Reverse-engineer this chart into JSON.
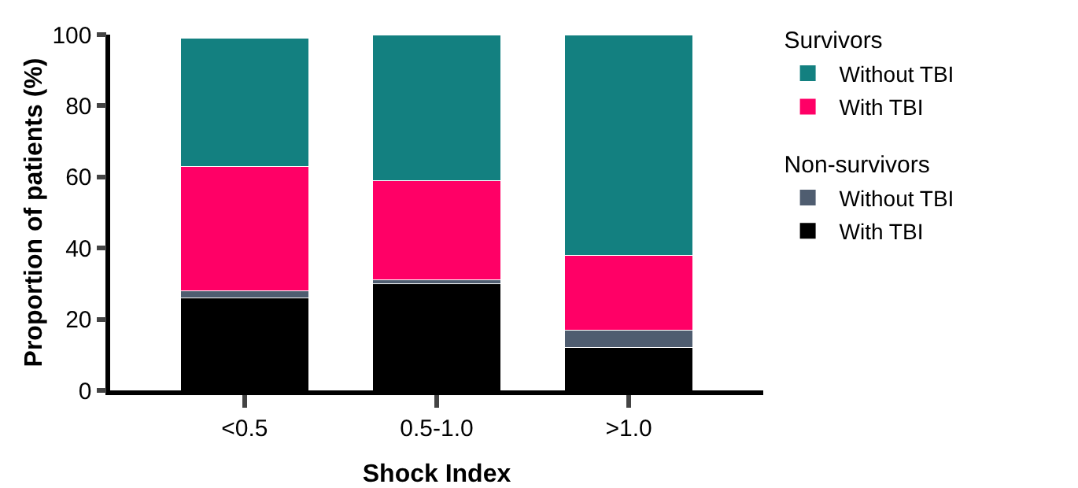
{
  "chart_data": {
    "type": "bar",
    "stacked": true,
    "xlabel": "Shock Index",
    "ylabel": "Proportion of patients (%)",
    "categories": [
      "<0.5",
      "0.5-1.0",
      ">1.0"
    ],
    "series": [
      {
        "name": "With TBI",
        "color": "#000000",
        "values": [
          26,
          30,
          12
        ]
      },
      {
        "name": "Without TBI",
        "color": "#4f5d70",
        "values": [
          2,
          1,
          5
        ]
      },
      {
        "name": "With TBI",
        "color": "#ff0066",
        "values": [
          35,
          28,
          21
        ]
      },
      {
        "name": "Without TBI",
        "color": "#138080",
        "values": [
          36,
          41,
          62
        ]
      }
    ],
    "annotations": [
      "Survivors",
      "Non-survivors"
    ],
    "ylim": [
      0,
      100
    ],
    "yticks": [
      0,
      20,
      40,
      60,
      80,
      100
    ],
    "grid": false,
    "legend": "right"
  }
}
